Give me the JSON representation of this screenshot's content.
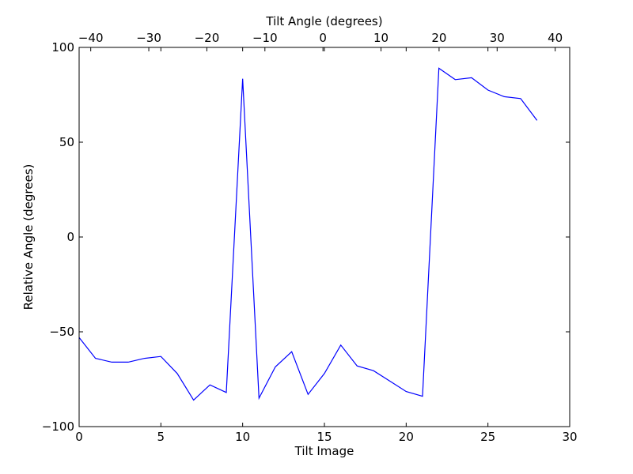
{
  "chart_data": {
    "type": "line",
    "xlabel": "Tilt Image",
    "x2label": "Tilt Angle (degrees)",
    "ylabel": "Relative Angle (degrees)",
    "xlim": [
      0,
      30
    ],
    "ylim": [
      -100,
      100
    ],
    "x2lim": [
      -42,
      42.5
    ],
    "x_ticks": [
      0,
      5,
      10,
      15,
      20,
      25,
      30
    ],
    "x_tick_labels": [
      "0",
      "5",
      "10",
      "15",
      "20",
      "25",
      "30"
    ],
    "y_ticks": [
      -100,
      -50,
      0,
      50,
      100
    ],
    "y_tick_labels": [
      "−100",
      "−50",
      "0",
      "50",
      "100"
    ],
    "x2_ticks": [
      -40,
      -30,
      -20,
      -10,
      0,
      10,
      20,
      30,
      40
    ],
    "x2_tick_labels": [
      "−40",
      "−30",
      "−20",
      "−10",
      "0",
      "10",
      "20",
      "30",
      "40"
    ],
    "grid": false,
    "series": [
      {
        "color": "#0000ff",
        "x": [
          0,
          1,
          2,
          3,
          4,
          5,
          6,
          7,
          8,
          9,
          10,
          11,
          12,
          13,
          14,
          15,
          16,
          17,
          18,
          19,
          20,
          21,
          22,
          23,
          24,
          25,
          26,
          27,
          28
        ],
        "y": [
          -53,
          -64,
          -66,
          -66,
          -64,
          -63,
          -72,
          -86,
          -78,
          -82,
          83.5,
          -85,
          -68.5,
          -60.5,
          -83,
          -72,
          -57,
          -68,
          -70.5,
          -76,
          -81.5,
          -84,
          89,
          83,
          84,
          77.5,
          74,
          73,
          61.5
        ]
      }
    ]
  }
}
